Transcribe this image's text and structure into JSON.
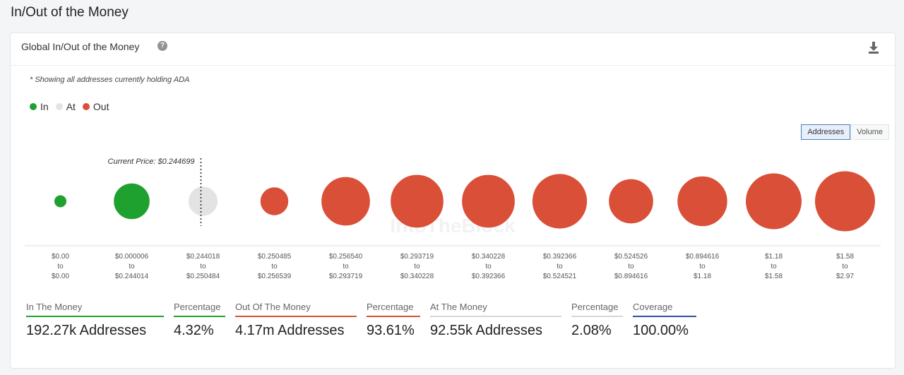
{
  "page": {
    "title": "In/Out of the Money"
  },
  "card": {
    "title": "Global In/Out of the Money",
    "help_icon": "question-circle-icon",
    "download_icon": "download-icon",
    "note": "* Showing all addresses currently holding ADA"
  },
  "legend": [
    {
      "label": "In",
      "color": "#1ea12f"
    },
    {
      "label": "At",
      "color": "#e3e3e3"
    },
    {
      "label": "Out",
      "color": "#d94f38"
    }
  ],
  "toggle": {
    "addresses": "Addresses",
    "volume": "Volume",
    "selected": "Addresses"
  },
  "chart_data": {
    "type": "bubble",
    "current_price_label": "Current Price: $0.244699",
    "current_price_index": 2,
    "watermark": "IntoTheBlock",
    "categories": [
      {
        "from": "$0.00",
        "to": "$0.00",
        "status": "In",
        "relative_size": 0.21
      },
      {
        "from": "$0.000006",
        "to": "$0.244014",
        "status": "In",
        "relative_size": 0.6
      },
      {
        "from": "$0.244018",
        "to": "$0.250484",
        "status": "At",
        "relative_size": 0.49
      },
      {
        "from": "$0.250485",
        "to": "$0.256539",
        "status": "Out",
        "relative_size": 0.47
      },
      {
        "from": "$0.256540",
        "to": "$0.293719",
        "status": "Out",
        "relative_size": 0.81
      },
      {
        "from": "$0.293719",
        "to": "$0.340228",
        "status": "Out",
        "relative_size": 0.88
      },
      {
        "from": "$0.340228",
        "to": "$0.392366",
        "status": "Out",
        "relative_size": 0.88
      },
      {
        "from": "$0.392366",
        "to": "$0.524521",
        "status": "Out",
        "relative_size": 0.91
      },
      {
        "from": "$0.524526",
        "to": "$0.894616",
        "status": "Out",
        "relative_size": 0.74
      },
      {
        "from": "$0.894616",
        "to": "$1.18",
        "status": "Out",
        "relative_size": 0.83
      },
      {
        "from": "$1.18",
        "to": "$1.58",
        "status": "Out",
        "relative_size": 0.93
      },
      {
        "from": "$1.58",
        "to": "$2.97",
        "status": "Out",
        "relative_size": 1.0
      }
    ],
    "to_word": "to"
  },
  "stats": [
    {
      "label": "In The Money",
      "value": "192.27k Addresses",
      "color": "#1ea12f"
    },
    {
      "label": "Percentage",
      "value": "4.32%",
      "color": "#1ea12f"
    },
    {
      "label": "Out Of The Money",
      "value": "4.17m Addresses",
      "color": "#d94f38"
    },
    {
      "label": "Percentage",
      "value": "93.61%",
      "color": "#d94f38"
    },
    {
      "label": "At The Money",
      "value": "92.55k Addresses",
      "color": "#d6d6d6"
    },
    {
      "label": "Percentage",
      "value": "2.08%",
      "color": "#d6d6d6"
    },
    {
      "label": "Coverage",
      "value": "100.00%",
      "color": "#2f4fa8"
    }
  ]
}
